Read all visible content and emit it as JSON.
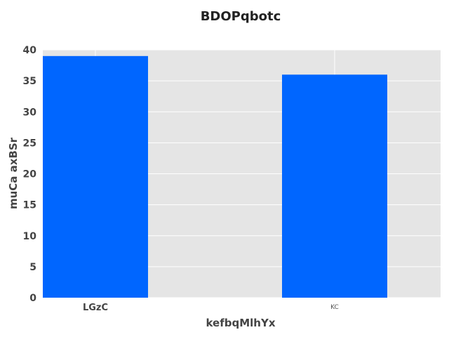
{
  "chart_data": {
    "type": "bar",
    "title": "BDOPqbotc",
    "xlabel": "kefbqMlhYx",
    "ylabel": "muCa axBSr",
    "categories": [
      "LGzC",
      "KC"
    ],
    "values": [
      39,
      36
    ],
    "ylim": [
      0,
      40
    ],
    "yticks": [
      0,
      5,
      10,
      15,
      20,
      25,
      30,
      35,
      40
    ],
    "bar_color": "#0066ff",
    "background_color": "#e5e5e5",
    "grid": true
  }
}
